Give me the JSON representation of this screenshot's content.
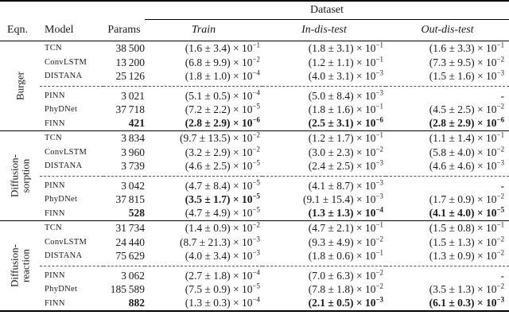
{
  "colors": {
    "text": "#1a1a1a",
    "rule": "#000000",
    "background": "#ffffff"
  },
  "table": {
    "header": {
      "dataset": "Dataset",
      "eqn": "Eqn.",
      "model": "Model",
      "params": "Params",
      "columns": [
        "Train",
        "In-dis-test",
        "Out-dis-test"
      ]
    },
    "groups": [
      {
        "label_lines": [
          "Burger"
        ],
        "rows": [
          {
            "model": "TCN",
            "params": "38 500",
            "params_bold": false,
            "cells": [
              {
                "b": "(1.6 ± 3.4) × 10",
                "e": "−1",
                "bold": false
              },
              {
                "b": "(1.8 ± 3.1) × 10",
                "e": "−1",
                "bold": false
              },
              {
                "b": "(1.6 ± 3.3) × 10",
                "e": "−1",
                "bold": false
              }
            ]
          },
          {
            "model": "ConvLSTM",
            "params": "13 200",
            "params_bold": false,
            "cells": [
              {
                "b": "(6.8 ± 9.9) × 10",
                "e": "−2",
                "bold": false
              },
              {
                "b": "(1.2 ± 1.1) × 10",
                "e": "−1",
                "bold": false
              },
              {
                "b": "(7.3 ± 9.5) × 10",
                "e": "−2",
                "bold": false
              }
            ]
          },
          {
            "model": "DISTANA",
            "params": "25 126",
            "params_bold": false,
            "cells": [
              {
                "b": "(1.8 ± 1.0) × 10",
                "e": "−4",
                "bold": false
              },
              {
                "b": "(4.0 ± 3.1) × 10",
                "e": "−3",
                "bold": false
              },
              {
                "b": "(1.5 ± 1.6) × 10",
                "e": "−3",
                "bold": false
              }
            ]
          },
          {
            "model": "PINN",
            "params": "3 021",
            "params_bold": false,
            "cells": [
              {
                "b": "(5.1 ± 0.5) × 10",
                "e": "−4",
                "bold": false
              },
              {
                "b": "(5.0 ± 8.4) × 10",
                "e": "−3",
                "bold": false
              },
              {
                "b": "-",
                "e": null,
                "bold": false
              }
            ]
          },
          {
            "model": "PhyDNet",
            "params": "37 718",
            "params_bold": false,
            "cells": [
              {
                "b": "(7.2 ± 2.2) × 10",
                "e": "−5",
                "bold": false
              },
              {
                "b": "(1.8 ± 1.6) × 10",
                "e": "−1",
                "bold": false
              },
              {
                "b": "(4.5 ± 2.5) × 10",
                "e": "−2",
                "bold": false
              }
            ]
          },
          {
            "model": "FINN",
            "params": "421",
            "params_bold": true,
            "cells": [
              {
                "b": "(2.8 ± 2.9) × 10",
                "e": "−6",
                "bold": true
              },
              {
                "b": "(2.5 ± 3.1) × 10",
                "e": "−6",
                "bold": true
              },
              {
                "b": "(2.8 ± 2.9) × 10",
                "e": "−6",
                "bold": true
              }
            ]
          }
        ]
      },
      {
        "label_lines": [
          "Diffusion-",
          "sorption"
        ],
        "rows": [
          {
            "model": "TCN",
            "params": "3 834",
            "params_bold": false,
            "cells": [
              {
                "b": "(9.7 ± 13.5) × 10",
                "e": "−2",
                "bold": false
              },
              {
                "b": "(1.2 ± 1.7) × 10",
                "e": "−1",
                "bold": false
              },
              {
                "b": "(1.1 ± 1.4) × 10",
                "e": "−1",
                "bold": false
              }
            ]
          },
          {
            "model": "ConvLSTM",
            "params": "3 960",
            "params_bold": false,
            "cells": [
              {
                "b": "(3.2 ± 2.9) × 10",
                "e": "−2",
                "bold": false
              },
              {
                "b": "(3.0 ± 2.3) × 10",
                "e": "−2",
                "bold": false
              },
              {
                "b": "(5.8 ± 4.0) × 10",
                "e": "−2",
                "bold": false
              }
            ]
          },
          {
            "model": "DISTANA",
            "params": "3 739",
            "params_bold": false,
            "cells": [
              {
                "b": "(4.6 ± 2.5) × 10",
                "e": "−5",
                "bold": false
              },
              {
                "b": "(2.4 ± 2.5) × 10",
                "e": "−3",
                "bold": false
              },
              {
                "b": "(4.6 ± 4.6) × 10",
                "e": "−3",
                "bold": false
              }
            ]
          },
          {
            "model": "PINN",
            "params": "3 042",
            "params_bold": false,
            "cells": [
              {
                "b": "(4.7 ± 8.4) × 10",
                "e": "−5",
                "bold": false
              },
              {
                "b": "(4.1 ± 8.7) × 10",
                "e": "−3",
                "bold": false
              },
              {
                "b": "-",
                "e": null,
                "bold": false
              }
            ]
          },
          {
            "model": "PhyDNet",
            "params": "37 815",
            "params_bold": false,
            "cells": [
              {
                "b": "(3.5 ± 1.7) × 10",
                "e": "−5",
                "bold": true
              },
              {
                "b": "(9.1 ± 15.4) × 10",
                "e": "−3",
                "bold": false
              },
              {
                "b": "(1.7 ± 0.9) × 10",
                "e": "−2",
                "bold": false
              }
            ]
          },
          {
            "model": "FINN",
            "params": "528",
            "params_bold": true,
            "cells": [
              {
                "b": "(4.7 ± 4.9) × 10",
                "e": "−5",
                "bold": false
              },
              {
                "b": "(1.3 ± 1.3) × 10",
                "e": "−4",
                "bold": true
              },
              {
                "b": "(4.1 ± 4.0) × 10",
                "e": "−5",
                "bold": true
              }
            ]
          }
        ]
      },
      {
        "label_lines": [
          "Diffusion-",
          "reaction"
        ],
        "rows": [
          {
            "model": "TCN",
            "params": "31 734",
            "params_bold": false,
            "cells": [
              {
                "b": "(1.4 ± 0.9) × 10",
                "e": "−2",
                "bold": false
              },
              {
                "b": "(4.7 ± 2.1) × 10",
                "e": "−1",
                "bold": false
              },
              {
                "b": "(1.5 ± 0.8) × 10",
                "e": "−1",
                "bold": false
              }
            ]
          },
          {
            "model": "ConvLSTM",
            "params": "24 440",
            "params_bold": false,
            "cells": [
              {
                "b": "(8.7 ± 21.3) × 10",
                "e": "−3",
                "bold": false
              },
              {
                "b": "(9.3 ± 4.9) × 10",
                "e": "−2",
                "bold": false
              },
              {
                "b": "(1.5 ± 1.3) × 10",
                "e": "−2",
                "bold": false
              }
            ]
          },
          {
            "model": "DISTANA",
            "params": "75 629",
            "params_bold": false,
            "cells": [
              {
                "b": "(4.0 ± 3.4) × 10",
                "e": "−3",
                "bold": false
              },
              {
                "b": "(1.8 ± 0.6) × 10",
                "e": "−1",
                "bold": false
              },
              {
                "b": "(1.3 ± 0.9) × 10",
                "e": "−2",
                "bold": false
              }
            ]
          },
          {
            "model": "PINN",
            "params": "3 062",
            "params_bold": false,
            "cells": [
              {
                "b": "(2.7 ± 1.8) × 10",
                "e": "−4",
                "bold": false
              },
              {
                "b": "(7.0 ± 6.3) × 10",
                "e": "−2",
                "bold": false
              },
              {
                "b": "-",
                "e": null,
                "bold": false
              }
            ]
          },
          {
            "model": "PhyDNet",
            "params": "185 589",
            "params_bold": false,
            "cells": [
              {
                "b": "(7.5 ± 0.9) × 10",
                "e": "−5",
                "bold": false
              },
              {
                "b": "(7.8 ± 1.8) × 10",
                "e": "−2",
                "bold": false
              },
              {
                "b": "(3.5 ± 1.3) × 10",
                "e": "−2",
                "bold": false
              }
            ]
          },
          {
            "model": "FINN",
            "params": "882",
            "params_bold": true,
            "cells": [
              {
                "b": "(1.3 ± 0.3) × 10",
                "e": "−4",
                "bold": false
              },
              {
                "b": "(2.1 ± 0.5) × 10",
                "e": "−3",
                "bold": true
              },
              {
                "b": "(6.1 ± 0.3) × 10",
                "e": "−3",
                "bold": true
              }
            ]
          }
        ]
      }
    ]
  }
}
